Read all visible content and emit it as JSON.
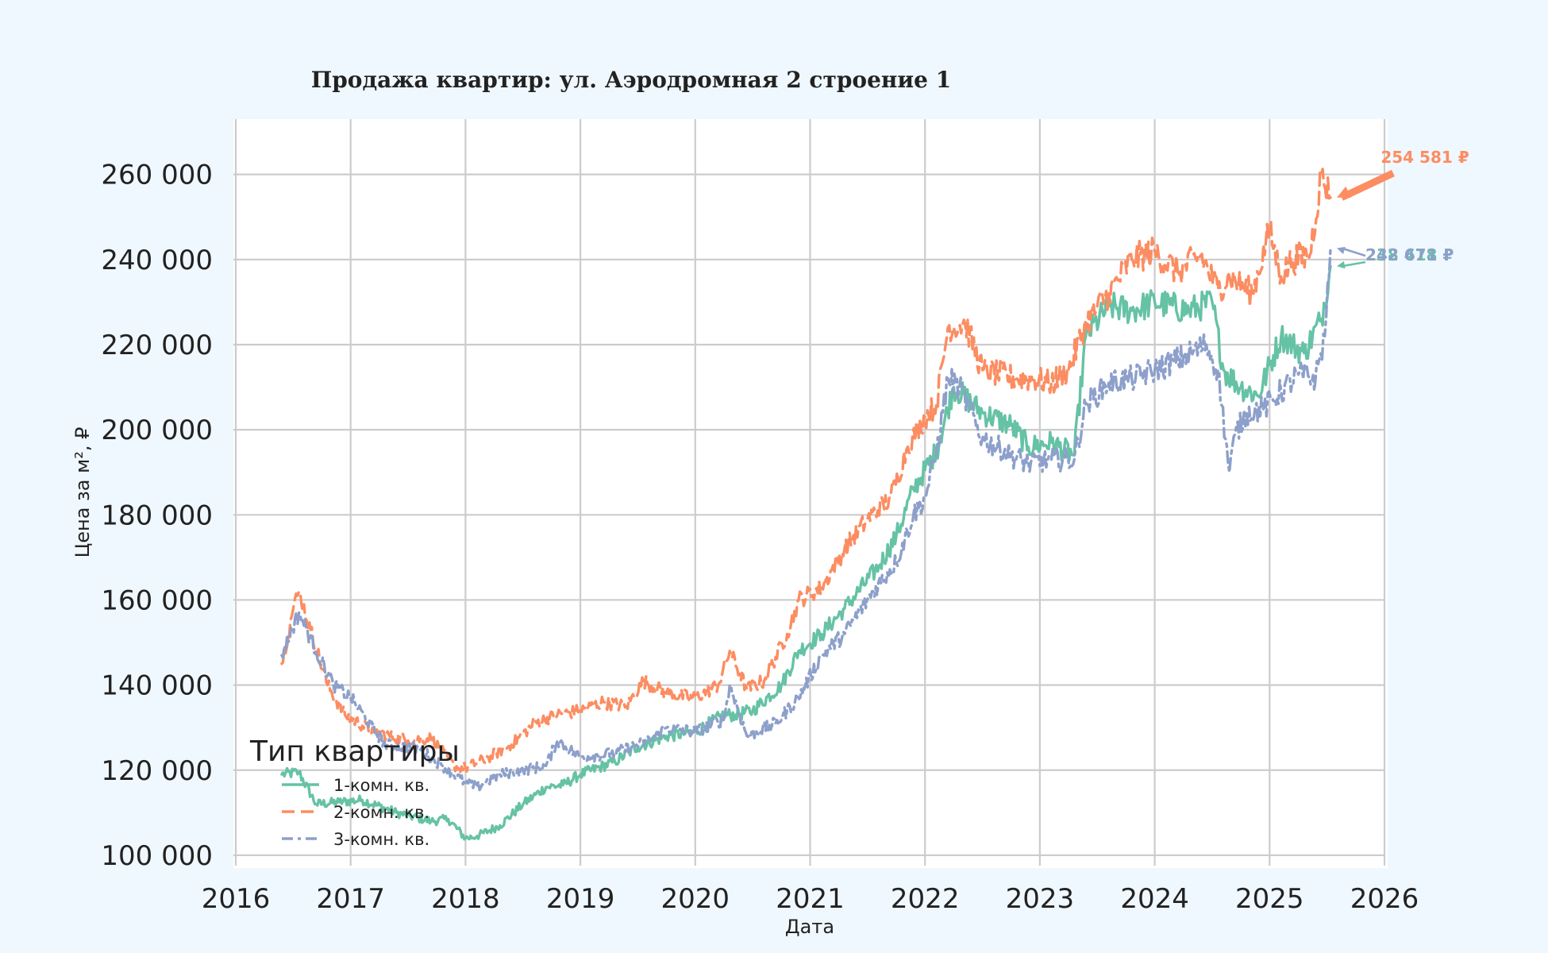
{
  "chart_data": {
    "type": "line",
    "title": "Продажа квартир: ул. Аэродромная 2 строение 1",
    "xlabel": "Дата",
    "ylabel": "Цена за м², ₽",
    "xlim": [
      2016,
      2026
    ],
    "ylim": [
      97000,
      273000
    ],
    "x_ticks": [
      2016,
      2017,
      2018,
      2019,
      2020,
      2021,
      2022,
      2023,
      2024,
      2025,
      2026
    ],
    "x_tick_labels": [
      "2016",
      "2017",
      "2018",
      "2019",
      "2020",
      "2021",
      "2022",
      "2023",
      "2024",
      "2025",
      "2026"
    ],
    "y_ticks": [
      100000,
      120000,
      140000,
      160000,
      180000,
      200000,
      220000,
      240000,
      260000
    ],
    "y_tick_labels": [
      "100 000",
      "120 000",
      "140 000",
      "160 000",
      "180 000",
      "200 000",
      "220 000",
      "240 000",
      "260 000"
    ],
    "grid": true,
    "legend": {
      "title": "Тип квартиры",
      "position": "lower-left",
      "entries": [
        "1-комн. кв.",
        "2-комн. кв.",
        "3-комн. кв."
      ]
    },
    "series": [
      {
        "name": "1-комн. кв.",
        "color": "#66c2a5",
        "style": "solid",
        "x": [
          2016.4,
          2016.55,
          2016.7,
          2016.9,
          2017.1,
          2017.4,
          2017.7,
          2017.85,
          2018.0,
          2018.1,
          2018.3,
          2018.5,
          2018.7,
          2018.85,
          2019.0,
          2019.3,
          2019.5,
          2019.75,
          2020.0,
          2020.25,
          2020.35,
          2020.5,
          2020.75,
          2020.9,
          2021.1,
          2021.3,
          2021.6,
          2021.75,
          2021.9,
          2022.1,
          2022.25,
          2022.5,
          2022.75,
          2022.9,
          2023.1,
          2023.3,
          2023.4,
          2023.6,
          2023.8,
          2024.0,
          2024.3,
          2024.5,
          2024.6,
          2024.75,
          2024.9,
          2025.1,
          2025.3,
          2025.45,
          2025.53
        ],
        "y": [
          119000,
          119500,
          112000,
          112500,
          113000,
          110000,
          108000,
          108500,
          104000,
          104500,
          107000,
          112000,
          116000,
          116500,
          119000,
          122000,
          125500,
          128000,
          129000,
          133000,
          133000,
          134000,
          140000,
          148000,
          152000,
          158000,
          168000,
          175000,
          186000,
          195000,
          210000,
          204000,
          201000,
          196000,
          197000,
          194000,
          222000,
          229000,
          228000,
          230000,
          228000,
          230000,
          214000,
          210000,
          208000,
          222000,
          218000,
          226000,
          238418
        ]
      },
      {
        "name": "2-комн. кв.",
        "color": "#fc8d62",
        "style": "dashed",
        "x": [
          2016.4,
          2016.5,
          2016.55,
          2016.65,
          2016.8,
          2016.95,
          2017.2,
          2017.5,
          2017.7,
          2017.9,
          2018.0,
          2018.2,
          2018.4,
          2018.6,
          2018.8,
          2019.0,
          2019.2,
          2019.4,
          2019.55,
          2019.75,
          2020.0,
          2020.2,
          2020.3,
          2020.45,
          2020.6,
          2020.8,
          2020.9,
          2021.1,
          2021.3,
          2021.5,
          2021.7,
          2021.85,
          2022.0,
          2022.1,
          2022.2,
          2022.35,
          2022.5,
          2022.8,
          2022.95,
          2023.1,
          2023.25,
          2023.4,
          2023.6,
          2023.8,
          2024.0,
          2024.2,
          2024.4,
          2024.55,
          2024.65,
          2024.85,
          2025.0,
          2025.1,
          2025.2,
          2025.35,
          2025.45,
          2025.53
        ],
        "y": [
          145000,
          158000,
          162000,
          153000,
          140000,
          133000,
          129000,
          127000,
          127500,
          121000,
          120500,
          123000,
          126000,
          131000,
          133000,
          134000,
          136000,
          135000,
          141000,
          138000,
          137000,
          140000,
          148000,
          139000,
          141000,
          152000,
          160000,
          163000,
          172000,
          179000,
          184000,
          196000,
          203000,
          206000,
          224000,
          225000,
          214000,
          212000,
          212000,
          211000,
          214000,
          225000,
          232000,
          240000,
          242000,
          237000,
          241000,
          233000,
          236000,
          232000,
          247000,
          236000,
          240000,
          241000,
          260000,
          254581
        ]
      },
      {
        "name": "3-комн. кв.",
        "color": "#8da0cb",
        "style": "dashdot",
        "x": [
          2016.4,
          2016.55,
          2016.7,
          2016.85,
          2017.0,
          2017.3,
          2017.6,
          2017.8,
          2018.0,
          2018.1,
          2018.3,
          2018.5,
          2018.7,
          2018.8,
          2019.0,
          2019.3,
          2019.6,
          2019.75,
          2020.0,
          2020.25,
          2020.3,
          2020.45,
          2020.7,
          2020.9,
          2021.1,
          2021.3,
          2021.55,
          2021.75,
          2021.9,
          2022.0,
          2022.1,
          2022.2,
          2022.3,
          2022.5,
          2022.75,
          2022.9,
          2023.1,
          2023.3,
          2023.4,
          2023.6,
          2023.8,
          2024.0,
          2024.25,
          2024.45,
          2024.55,
          2024.65,
          2024.7,
          2024.8,
          2024.95,
          2025.1,
          2025.25,
          2025.4,
          2025.48,
          2025.53
        ],
        "y": [
          147000,
          157000,
          148000,
          140000,
          137000,
          126000,
          125000,
          121000,
          117000,
          116000,
          119000,
          120000,
          121000,
          127000,
          123000,
          124000,
          127000,
          130000,
          129000,
          132000,
          140000,
          128000,
          131000,
          137000,
          147000,
          152000,
          162000,
          169000,
          180000,
          184000,
          195000,
          212000,
          210000,
          198000,
          194000,
          192000,
          193000,
          193000,
          206000,
          211000,
          212000,
          214000,
          217000,
          220000,
          214000,
          190000,
          199000,
          204000,
          205000,
          209000,
          213000,
          212000,
          222000,
          242671
        ]
      }
    ],
    "annotations": [
      {
        "text": "254 581 ₽",
        "series": "2-комн. кв.",
        "x": 2025.53,
        "y": 254581,
        "color": "#fc8d62"
      },
      {
        "text": "238 418 ₽",
        "series": "1-комн. кв.",
        "x": 2025.53,
        "y": 238418,
        "color": "#66c2a5"
      },
      {
        "text": "242 671 ₽",
        "series": "3-комн. кв.",
        "x": 2025.53,
        "y": 242671,
        "color": "#8da0cb"
      }
    ]
  }
}
